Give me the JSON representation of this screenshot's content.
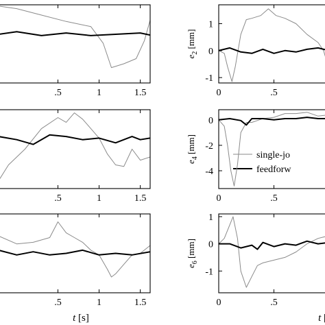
{
  "chart_data": [
    {
      "type": "line",
      "panel": "e1",
      "ylabel": "",
      "ysub": "",
      "xlim": [
        -0.22,
        1.62
      ],
      "ylim": [
        -1.15,
        1.9
      ],
      "xticks": [
        0.5,
        1,
        1.5
      ],
      "yticks": [],
      "series": [
        {
          "style": "single",
          "x": [
            -0.22,
            0.0,
            0.3,
            0.6,
            0.9,
            1.05,
            1.15,
            1.3,
            1.45,
            1.55,
            1.62
          ],
          "y": [
            1.85,
            1.75,
            1.5,
            1.25,
            1.05,
            0.4,
            -0.55,
            -0.4,
            -0.2,
            0.5,
            1.3
          ]
        },
        {
          "style": "feedforward",
          "x": [
            -0.22,
            0.0,
            0.3,
            0.6,
            0.9,
            1.2,
            1.5,
            1.62
          ],
          "y": [
            0.75,
            0.85,
            0.7,
            0.8,
            0.7,
            0.75,
            0.8,
            0.72
          ]
        }
      ]
    },
    {
      "type": "line",
      "panel": "e2",
      "ylabel": "[mm]",
      "ysub": "2",
      "xlim": [
        0,
        1.0
      ],
      "ylim": [
        -1.2,
        1.7
      ],
      "xticks": [
        0,
        0.5
      ],
      "yticks": [
        -1,
        0,
        1
      ],
      "series": [
        {
          "style": "single",
          "x": [
            0.0,
            0.05,
            0.08,
            0.12,
            0.15,
            0.2,
            0.25,
            0.3,
            0.38,
            0.45,
            0.52,
            0.6,
            0.7,
            0.8,
            0.9,
            0.95,
            1.0
          ],
          "y": [
            0.0,
            -0.1,
            -0.6,
            -1.15,
            -0.6,
            0.6,
            1.15,
            1.2,
            1.3,
            1.55,
            1.3,
            1.2,
            1.0,
            0.6,
            0.3,
            0.0,
            -0.7
          ]
        },
        {
          "style": "feedforward",
          "x": [
            0.0,
            0.1,
            0.2,
            0.3,
            0.4,
            0.5,
            0.6,
            0.7,
            0.8,
            0.9,
            1.0
          ],
          "y": [
            0.0,
            0.1,
            -0.05,
            -0.1,
            0.05,
            -0.1,
            0.0,
            -0.05,
            0.05,
            0.1,
            0.0
          ]
        }
      ]
    },
    {
      "type": "line",
      "panel": "e3",
      "ylabel": "",
      "ysub": "",
      "xlim": [
        -0.22,
        1.62
      ],
      "ylim": [
        -3,
        2
      ],
      "xticks": [
        0.5,
        1,
        1.5
      ],
      "yticks": [],
      "series": [
        {
          "style": "single",
          "x": [
            -0.22,
            -0.1,
            0.1,
            0.3,
            0.5,
            0.6,
            0.7,
            0.8,
            0.9,
            1.0,
            1.1,
            1.2,
            1.3,
            1.4,
            1.5,
            1.62
          ],
          "y": [
            -2.5,
            -1.5,
            -0.5,
            0.8,
            1.5,
            1.2,
            1.8,
            1.4,
            0.8,
            0.2,
            -0.8,
            -1.5,
            -1.6,
            -0.5,
            -1.2,
            -1.0
          ]
        },
        {
          "style": "feedforward",
          "x": [
            -0.22,
            0.0,
            0.2,
            0.4,
            0.6,
            0.8,
            1.0,
            1.2,
            1.4,
            1.5,
            1.62
          ],
          "y": [
            0.3,
            0.1,
            -0.2,
            0.4,
            0.3,
            0.1,
            0.2,
            -0.1,
            0.3,
            0.1,
            0.2
          ]
        }
      ]
    },
    {
      "type": "line",
      "panel": "e4",
      "ylabel": "[mm]",
      "ysub": "4",
      "xlim": [
        0,
        1.0
      ],
      "ylim": [
        -5.4,
        0.8
      ],
      "xticks": [
        0,
        0.5
      ],
      "yticks": [
        -4,
        -2,
        0
      ],
      "series": [
        {
          "style": "single",
          "x": [
            0.0,
            0.05,
            0.08,
            0.11,
            0.14,
            0.17,
            0.2,
            0.25,
            0.3,
            0.4,
            0.5,
            0.6,
            0.7,
            0.8,
            0.9,
            1.0
          ],
          "y": [
            0.0,
            -0.5,
            -2.0,
            -4.0,
            -5.2,
            -3.5,
            -1.0,
            -0.2,
            -0.2,
            0.1,
            0.2,
            0.5,
            0.5,
            0.6,
            0.3,
            0.4
          ]
        },
        {
          "style": "feedforward",
          "x": [
            0.0,
            0.1,
            0.2,
            0.25,
            0.3,
            0.4,
            0.5,
            0.6,
            0.7,
            0.8,
            0.9,
            1.0
          ],
          "y": [
            0.0,
            0.1,
            -0.05,
            -0.4,
            0.1,
            0.1,
            0.0,
            0.1,
            0.1,
            0.2,
            0.1,
            0.1
          ]
        }
      ]
    },
    {
      "type": "line",
      "panel": "e5",
      "ylabel": "",
      "ysub": "",
      "xlim": [
        -0.22,
        1.62
      ],
      "ylim": [
        -3,
        2
      ],
      "xticks": [
        0.5,
        1,
        1.5
      ],
      "yticks": [],
      "series": [
        {
          "style": "single",
          "x": [
            -0.22,
            0.0,
            0.2,
            0.4,
            0.5,
            0.6,
            0.7,
            0.8,
            0.9,
            1.0,
            1.1,
            1.15,
            1.2,
            1.3,
            1.4,
            1.5,
            1.62
          ],
          "y": [
            0.6,
            0.1,
            0.2,
            0.5,
            1.5,
            0.8,
            0.5,
            0.2,
            -0.3,
            -0.6,
            -1.5,
            -2.0,
            -1.8,
            -1.2,
            -0.6,
            -0.5,
            0.0
          ]
        },
        {
          "style": "feedforward",
          "x": [
            -0.22,
            0.0,
            0.2,
            0.4,
            0.6,
            0.8,
            1.0,
            1.2,
            1.4,
            1.62
          ],
          "y": [
            -0.3,
            -0.6,
            -0.4,
            -0.6,
            -0.5,
            -0.3,
            -0.6,
            -0.5,
            -0.6,
            -0.4
          ]
        }
      ]
    },
    {
      "type": "line",
      "panel": "e6",
      "ylabel": "[mm]",
      "ysub": "6",
      "xlim": [
        0,
        1.0
      ],
      "ylim": [
        -1.8,
        1.1
      ],
      "xticks": [
        0,
        0.5
      ],
      "yticks": [
        -1,
        0,
        1
      ],
      "series": [
        {
          "style": "single",
          "x": [
            0.0,
            0.05,
            0.1,
            0.13,
            0.17,
            0.2,
            0.25,
            0.3,
            0.35,
            0.4,
            0.5,
            0.6,
            0.7,
            0.8,
            0.9,
            1.0
          ],
          "y": [
            0.0,
            0.2,
            0.7,
            1.0,
            0.2,
            -1.0,
            -1.6,
            -1.2,
            -0.8,
            -0.7,
            -0.6,
            -0.5,
            -0.3,
            0.0,
            0.2,
            0.3
          ]
        },
        {
          "style": "feedforward",
          "x": [
            0.0,
            0.1,
            0.2,
            0.3,
            0.35,
            0.4,
            0.5,
            0.6,
            0.7,
            0.8,
            0.9,
            1.0
          ],
          "y": [
            0.0,
            0.0,
            -0.15,
            -0.05,
            -0.2,
            0.05,
            -0.1,
            0.0,
            -0.05,
            0.1,
            0.0,
            0.05
          ]
        }
      ]
    }
  ],
  "xlabel": "t",
  "xunit": "[s]",
  "ylabel_prefix": "e",
  "legend": {
    "single": "single-jo",
    "feedforward": "feedforw"
  }
}
